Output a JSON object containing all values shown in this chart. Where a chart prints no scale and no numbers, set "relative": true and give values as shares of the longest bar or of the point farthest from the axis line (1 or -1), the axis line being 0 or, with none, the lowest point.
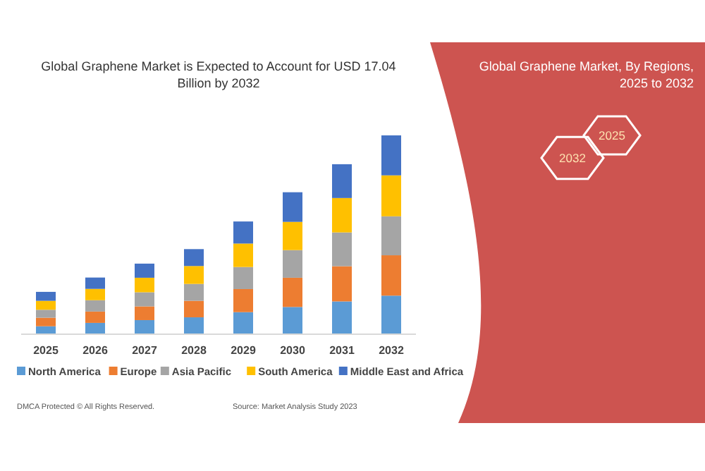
{
  "chart_data": {
    "type": "bar",
    "stacked": true,
    "relative": true,
    "title": "Global Graphene Market is Expected to Account for USD 17.04 Billion by 2032",
    "categories": [
      "2025",
      "2026",
      "2027",
      "2028",
      "2029",
      "2030",
      "2031",
      "2032"
    ],
    "series": [
      {
        "name": "North America",
        "color": "#5b9bd5",
        "values": [
          0.04,
          0.057,
          0.071,
          0.085,
          0.111,
          0.137,
          0.165,
          0.194
        ]
      },
      {
        "name": "Europe",
        "color": "#ed7d31",
        "values": [
          0.043,
          0.057,
          0.069,
          0.083,
          0.116,
          0.147,
          0.177,
          0.203
        ]
      },
      {
        "name": "Asia Pacific",
        "color": "#a5a5a5",
        "values": [
          0.04,
          0.057,
          0.071,
          0.085,
          0.111,
          0.139,
          0.17,
          0.196
        ]
      },
      {
        "name": "South America",
        "color": "#ffc000",
        "values": [
          0.045,
          0.057,
          0.073,
          0.09,
          0.118,
          0.142,
          0.173,
          0.206
        ]
      },
      {
        "name": "Middle East and Africa",
        "color": "#4472c4",
        "values": [
          0.045,
          0.057,
          0.071,
          0.085,
          0.111,
          0.149,
          0.17,
          0.201
        ]
      }
    ],
    "legend": "bottom",
    "annotations": [
      "Global Graphene Market, By Regions, 2025 to 2032",
      "2032",
      "2025",
      "DMCA Protected © All Rights Reserved.",
      "Source: Market Analysis Study 2023"
    ]
  }
}
